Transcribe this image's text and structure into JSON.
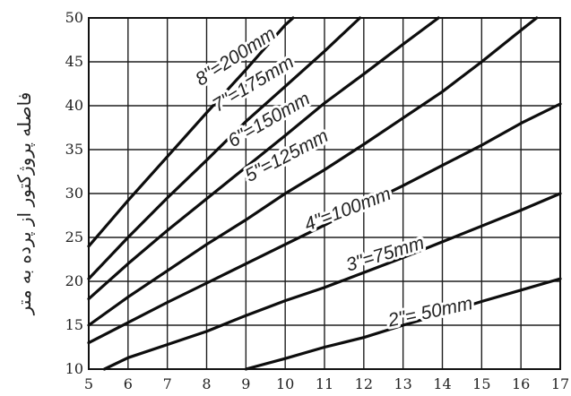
{
  "chart_data": {
    "type": "line",
    "title": "",
    "xlabel": "",
    "ylabel": "فاصله پروژکتور از پرده به متر",
    "xlim": [
      5,
      17
    ],
    "ylim": [
      10,
      50
    ],
    "xticks": [
      "5",
      "6",
      "7",
      "8",
      "9",
      "10",
      "11",
      "12",
      "13",
      "14",
      "15",
      "16",
      "17"
    ],
    "yticks": [
      "10",
      "15",
      "20",
      "25",
      "30",
      "35",
      "40",
      "45",
      "50"
    ],
    "grid": true,
    "series": [
      {
        "name": "8\"=200mm",
        "x": [
          5,
          6,
          7,
          8,
          9,
          10,
          10.2
        ],
        "y": [
          24,
          29.2,
          34.2,
          39.2,
          44.1,
          49.2,
          50
        ]
      },
      {
        "name": "7\"=175mm",
        "x": [
          5,
          6,
          7,
          8,
          9,
          10,
          11,
          11.9
        ],
        "y": [
          20.3,
          25,
          29.5,
          33.8,
          38.2,
          42.2,
          46.2,
          50
        ]
      },
      {
        "name": "6\"=150mm",
        "x": [
          5,
          6,
          7,
          8,
          9,
          10,
          11,
          12,
          13,
          13.9
        ],
        "y": [
          18,
          22,
          25.8,
          29.4,
          33,
          36.6,
          40.3,
          43.6,
          47,
          50
        ]
      },
      {
        "name": "5\"=125mm",
        "x": [
          5,
          6,
          7,
          8,
          9,
          10,
          11,
          12,
          13,
          14,
          15,
          16,
          16.4
        ],
        "y": [
          15,
          18.2,
          21.2,
          24.2,
          27,
          30,
          32.7,
          35.6,
          38.6,
          41.6,
          45,
          48.6,
          50
        ]
      },
      {
        "name": "4\"=100mm",
        "x": [
          5,
          6,
          7,
          8,
          9,
          10,
          11,
          12,
          13,
          14,
          15,
          16,
          17
        ],
        "y": [
          13,
          15.3,
          17.6,
          19.8,
          22,
          24.2,
          26.4,
          28.7,
          30.9,
          33.2,
          35.5,
          38,
          40.2
        ]
      },
      {
        "name": "3\"=75mm",
        "x": [
          5.4,
          6,
          7,
          8,
          9,
          10,
          11,
          12,
          13,
          14,
          15,
          16,
          17
        ],
        "y": [
          10,
          11.3,
          12.8,
          14.3,
          16.1,
          17.8,
          19.3,
          21,
          22.7,
          24.5,
          26.3,
          28.1,
          30
        ]
      },
      {
        "name": "2\"=50mm",
        "x": [
          9,
          10,
          11,
          12,
          13,
          14,
          15,
          16,
          17
        ],
        "y": [
          10,
          11.2,
          12.5,
          13.6,
          15,
          16.3,
          17.7,
          19,
          20.3
        ]
      }
    ],
    "series_labels": [
      {
        "text": "8\"=200mm",
        "x": 8.75,
        "y": 45.5,
        "angle": -33
      },
      {
        "text": "7\"=175mm",
        "x": 9.2,
        "y": 42.4,
        "angle": -31
      },
      {
        "text": "6\"=150mm",
        "x": 9.6,
        "y": 38.3,
        "angle": -30
      },
      {
        "text": "5\"=125mm",
        "x": 10.05,
        "y": 34.2,
        "angle": -28
      },
      {
        "text": "4\"=100mm",
        "x": 11.6,
        "y": 28.1,
        "angle": -21
      },
      {
        "text": "3\"=75mm",
        "x": 12.55,
        "y": 23,
        "angle": -17
      },
      {
        "text": "2\"= 50mm",
        "x": 13.7,
        "y": 16.4,
        "angle": -12
      }
    ]
  }
}
